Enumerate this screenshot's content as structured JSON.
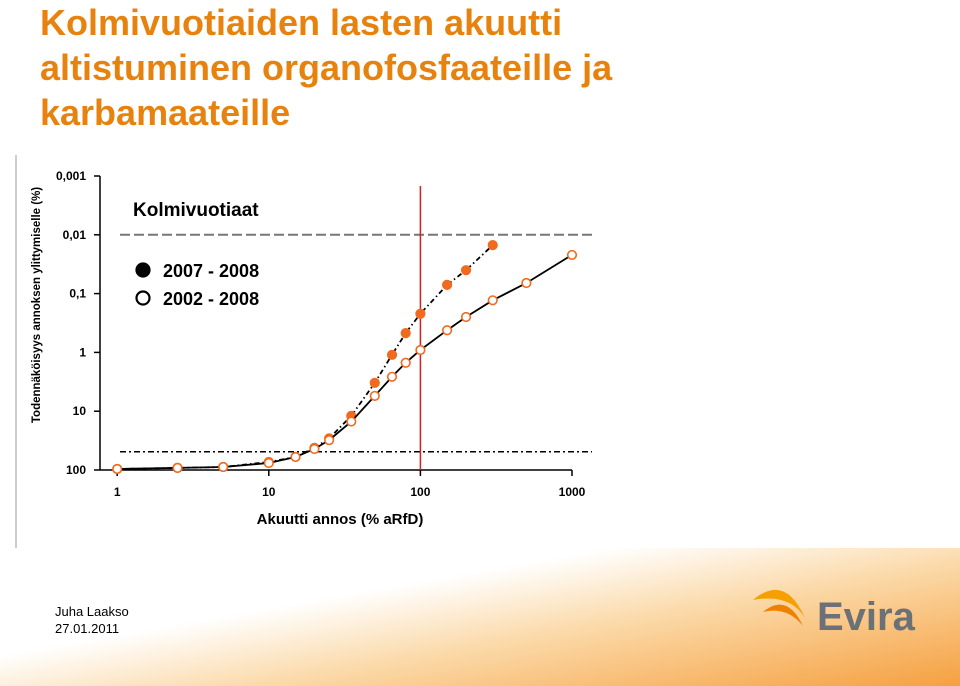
{
  "slide": {
    "title": "Kolmivuotiaiden lasten akuutti altistuminen organofosfaateille ja karbamaateille",
    "author": "Juha Laakso",
    "date": "27.01.2011",
    "logo_text": "Evira"
  },
  "chart_data": {
    "type": "line",
    "title": "Kolmivuotiaat",
    "x_label": "Akuutti annos (% aRfD)",
    "y_label": "Todennäköisyys annoksen ylittymiselle (%)",
    "x_scale": "log",
    "y_scale": "log",
    "xlim": [
      0.77,
      1000
    ],
    "ylim": [
      100,
      0.001
    ],
    "xticks": [
      1,
      10,
      100,
      1000
    ],
    "yticks": [
      {
        "value": 0.001,
        "label": "0,001"
      },
      {
        "value": 0.01,
        "label": "0,01"
      },
      {
        "value": 0.1,
        "label": "0,1"
      },
      1,
      10,
      100
    ],
    "hlines": [
      0.01,
      49
    ],
    "vline": 100,
    "vline_color": "#d42020",
    "series": [
      {
        "name": "2007 - 2008",
        "color": "#f06a20",
        "marker": "filled",
        "line_style": "dash-dot",
        "x": [
          1,
          2.5,
          5,
          10,
          15,
          20,
          25,
          35,
          50,
          65,
          80,
          100,
          150,
          200,
          300
        ],
        "values": [
          96,
          92,
          89,
          73,
          60,
          42,
          29,
          12,
          3.3,
          1.1,
          0.47,
          0.22,
          0.071,
          0.04,
          0.015
        ]
      },
      {
        "name": "2002 - 2008",
        "color": "#f06a20",
        "marker": "open",
        "line_style": "solid",
        "x": [
          1,
          2.5,
          5,
          10,
          15,
          20,
          25,
          35,
          50,
          65,
          80,
          100,
          150,
          200,
          300,
          500,
          1000
        ],
        "values": [
          96,
          92,
          89,
          76,
          60,
          44,
          31,
          15,
          5.5,
          2.6,
          1.5,
          0.91,
          0.42,
          0.25,
          0.13,
          0.066,
          0.022
        ]
      }
    ]
  }
}
